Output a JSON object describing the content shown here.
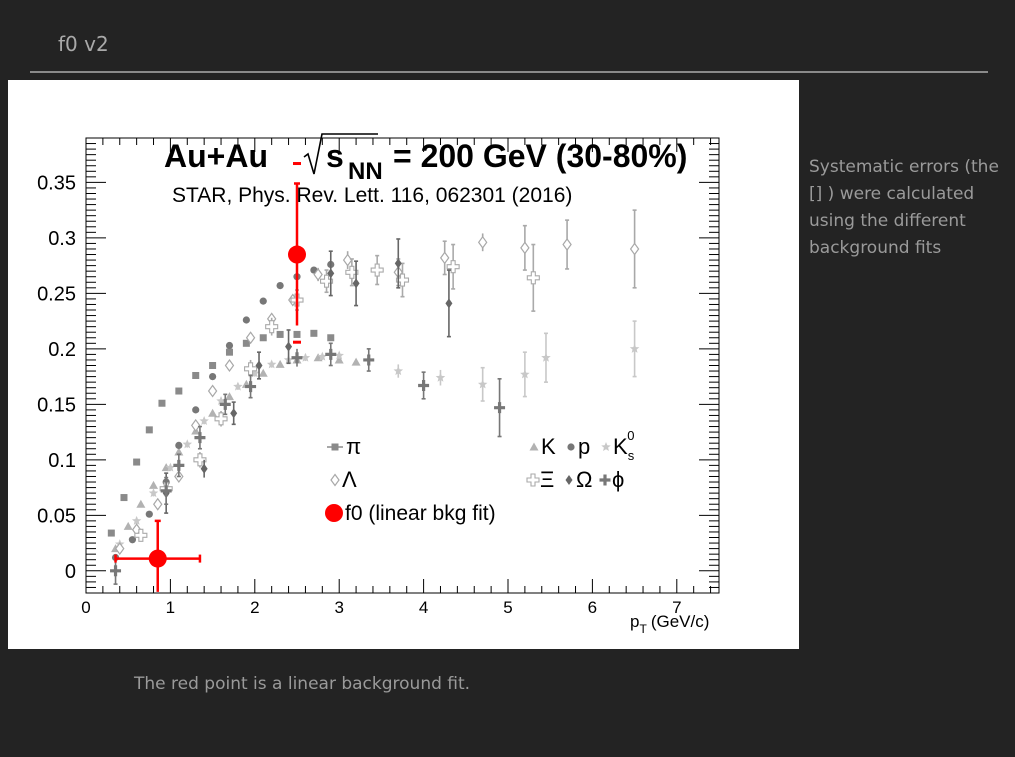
{
  "slide": {
    "title": "f0 v2",
    "side_note": "Systematic errors (the [] ) were calculated using the different background fits",
    "caption": "The red point is a linear background fit."
  },
  "chart_data": {
    "type": "scatter",
    "title": "Au+Au √sNN = 200 GeV (30-80%)",
    "title_parts": {
      "left": "Au+Au",
      "sqrt_symbol": "√",
      "s": "s",
      "sub": "NN",
      "right": "= 200 GeV (30-80%)"
    },
    "subtitle": "STAR, Phys. Rev. Lett. 116, 062301 (2016)",
    "xlabel": "p",
    "xlabel_sub": "T",
    "xlabel_unit": "(GeV/c)",
    "ylabel": "",
    "xlim": [
      0,
      7.5
    ],
    "ylim": [
      -0.02,
      0.39
    ],
    "x_ticks": [
      "0",
      "1",
      "2",
      "3",
      "4",
      "5",
      "6",
      "7"
    ],
    "y_ticks": [
      "0",
      "0.05",
      "0.1",
      "0.15",
      "0.2",
      "0.25",
      "0.3",
      "0.35"
    ],
    "grid": false,
    "legend": [
      {
        "label": "π",
        "marker": "square"
      },
      {
        "label": "K",
        "marker": "triangle"
      },
      {
        "label": "p",
        "marker": "circle"
      },
      {
        "label": "K",
        "label_sup": "0",
        "label_sub": "s",
        "marker": "star"
      },
      {
        "label": "Λ",
        "marker": "open-diamond"
      },
      {
        "label": "Ξ",
        "marker": "open-cross"
      },
      {
        "label": "Ω",
        "marker": "diamond"
      },
      {
        "label": "ϕ",
        "marker": "cross"
      },
      {
        "label": "f0 (linear bkg fit)",
        "marker": "big-circle",
        "color": "#ff0000"
      }
    ],
    "series": [
      {
        "name": "π",
        "marker": "square",
        "color": "#8a8a8a",
        "x": [
          0.3,
          0.45,
          0.6,
          0.75,
          0.9,
          1.1,
          1.3,
          1.5,
          1.7,
          1.9,
          2.1,
          2.3,
          2.5,
          2.7,
          2.9
        ],
        "y": [
          0.034,
          0.066,
          0.098,
          0.127,
          0.151,
          0.162,
          0.176,
          0.185,
          0.197,
          0.205,
          0.21,
          0.213,
          0.213,
          0.214,
          0.21
        ]
      },
      {
        "name": "K",
        "marker": "triangle",
        "color": "#b2b2b2",
        "x": [
          0.35,
          0.5,
          0.65,
          0.8,
          0.95,
          1.1,
          1.3,
          1.5,
          1.7,
          1.9,
          2.1,
          2.3,
          2.5,
          2.75,
          3.0,
          3.2
        ],
        "y": [
          0.02,
          0.04,
          0.06,
          0.077,
          0.093,
          0.107,
          0.126,
          0.142,
          0.157,
          0.168,
          0.178,
          0.186,
          0.19,
          0.192,
          0.19,
          0.188
        ]
      },
      {
        "name": "p",
        "marker": "circle",
        "color": "#777777",
        "x": [
          0.35,
          0.55,
          0.75,
          0.95,
          1.1,
          1.3,
          1.5,
          1.7,
          1.9,
          2.1,
          2.3,
          2.5,
          2.7,
          2.9
        ],
        "y": [
          0.012,
          0.028,
          0.051,
          0.08,
          0.113,
          0.145,
          0.175,
          0.203,
          0.226,
          0.243,
          0.257,
          0.265,
          0.271,
          0.276
        ]
      },
      {
        "name": "Ks0",
        "marker": "star",
        "color": "#c8c8c8",
        "x": [
          0.4,
          0.6,
          0.8,
          1.0,
          1.2,
          1.4,
          1.6,
          1.8,
          2.0,
          2.2,
          2.4,
          2.6,
          2.8,
          3.0,
          3.7,
          4.2,
          4.7,
          5.2,
          5.45,
          6.5
        ],
        "y": [
          0.024,
          0.045,
          0.07,
          0.093,
          0.114,
          0.135,
          0.153,
          0.166,
          0.178,
          0.186,
          0.19,
          0.192,
          0.193,
          0.194,
          0.18,
          0.174,
          0.168,
          0.177,
          0.192,
          0.2
        ],
        "yerr": [
          0.003,
          0.003,
          0.003,
          0.003,
          0.003,
          0.003,
          0.003,
          0.003,
          0.003,
          0.003,
          0.003,
          0.003,
          0.003,
          0.003,
          0.006,
          0.007,
          0.015,
          0.02,
          0.022,
          0.025
        ]
      },
      {
        "name": "Λ",
        "marker": "open-diamond",
        "color": "#a8a8a8",
        "x": [
          0.4,
          0.6,
          0.85,
          1.1,
          1.3,
          1.5,
          1.7,
          1.95,
          2.2,
          2.45,
          2.75,
          3.1,
          3.7,
          4.25,
          4.7,
          5.2,
          5.7,
          6.5
        ],
        "y": [
          0.02,
          0.037,
          0.06,
          0.085,
          0.131,
          0.162,
          0.185,
          0.21,
          0.227,
          0.244,
          0.267,
          0.28,
          0.269,
          0.282,
          0.296,
          0.291,
          0.294,
          0.29
        ],
        "yerr": [
          0.003,
          0.003,
          0.003,
          0.003,
          0.003,
          0.003,
          0.003,
          0.004,
          0.004,
          0.005,
          0.006,
          0.008,
          0.012,
          0.015,
          0.008,
          0.02,
          0.022,
          0.035
        ]
      },
      {
        "name": "Ξ",
        "marker": "open-cross",
        "color": "#aaaaaa",
        "x": [
          0.65,
          0.95,
          1.35,
          1.6,
          1.95,
          2.2,
          2.5,
          2.85,
          3.15,
          3.45,
          3.75,
          4.35,
          5.3
        ],
        "y": [
          0.032,
          0.074,
          0.1,
          0.137,
          0.182,
          0.22,
          0.244,
          0.261,
          0.269,
          0.271,
          0.262,
          0.274,
          0.264
        ],
        "yerr": [
          0.004,
          0.006,
          0.007,
          0.007,
          0.008,
          0.008,
          0.009,
          0.01,
          0.012,
          0.013,
          0.015,
          0.02,
          0.03
        ]
      },
      {
        "name": "Ω",
        "marker": "diamond",
        "color": "#666666",
        "x": [
          0.95,
          1.4,
          1.75,
          2.05,
          2.4,
          2.9,
          3.2,
          3.7,
          4.3
        ],
        "y": [
          0.07,
          0.092,
          0.142,
          0.185,
          0.202,
          0.268,
          0.259,
          0.277,
          0.241
        ],
        "yerr": [
          0.018,
          0.008,
          0.01,
          0.012,
          0.015,
          0.02,
          0.02,
          0.022,
          0.03
        ]
      },
      {
        "name": "ϕ",
        "marker": "cross",
        "color": "#777777",
        "x": [
          0.35,
          0.95,
          1.1,
          1.35,
          1.65,
          1.95,
          2.5,
          2.9,
          3.35,
          4.0,
          4.9
        ],
        "y": [
          0.0,
          0.072,
          0.095,
          0.12,
          0.15,
          0.166,
          0.192,
          0.195,
          0.19,
          0.167,
          0.147
        ],
        "yerr": [
          0.012,
          0.012,
          0.01,
          0.01,
          0.009,
          0.01,
          0.008,
          0.01,
          0.01,
          0.012,
          0.026
        ]
      }
    ],
    "f0": {
      "name": "f0 (linear bkg fit)",
      "color": "#ff0000",
      "points": [
        {
          "x": 0.85,
          "y": 0.011,
          "xerr": [
            0.5,
            0.5
          ],
          "yerr": [
            0.03,
            0.034
          ],
          "syst": null
        },
        {
          "x": 2.5,
          "y": 0.285,
          "xerr": [
            0,
            0
          ],
          "yerr": [
            0.064,
            0.064
          ],
          "syst": [
            0.206,
            0.367
          ]
        }
      ]
    }
  }
}
